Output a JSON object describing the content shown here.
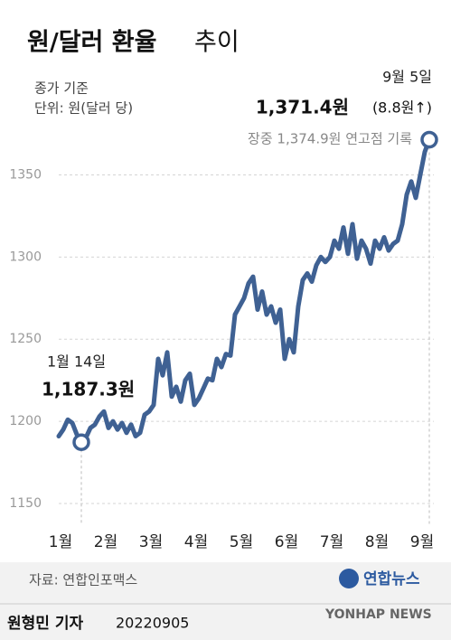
{
  "chart_data": {
    "type": "line",
    "title": "원/달러 환율",
    "title_suffix": "추이",
    "subtitle": [
      "종가 기준",
      "단위: 원(달러 당)"
    ],
    "categories": [
      "1월",
      null,
      null,
      null,
      null,
      null,
      null,
      null,
      null,
      null,
      "2월",
      null,
      null,
      null,
      null,
      null,
      null,
      null,
      null,
      null,
      "3월",
      null,
      null,
      null,
      null,
      null,
      null,
      null,
      null,
      null,
      "4월",
      null,
      null,
      null,
      null,
      null,
      null,
      null,
      null,
      null,
      "5월",
      null,
      null,
      null,
      null,
      null,
      null,
      null,
      null,
      null,
      "6월",
      null,
      null,
      null,
      null,
      null,
      null,
      null,
      null,
      null,
      "7월",
      null,
      null,
      null,
      null,
      null,
      null,
      null,
      null,
      null,
      "8월",
      null,
      null,
      null,
      null,
      null,
      null,
      null,
      null,
      null,
      "9월",
      null,
      null
    ],
    "series": [
      {
        "name": "원/달러 환율",
        "color": "#3f6193",
        "values": [
          1191,
          1195,
          1201,
          1199,
          1192,
          1187.3,
          1190,
          1196,
          1198,
          1203,
          1206,
          1196,
          1200,
          1195,
          1199,
          1193,
          1198,
          1191,
          1193,
          1204,
          1206,
          1210,
          1238,
          1228,
          1242,
          1215,
          1221,
          1212,
          1225,
          1229,
          1210,
          1214,
          1220,
          1226,
          1225,
          1238,
          1233,
          1241,
          1240,
          1265,
          1270,
          1275,
          1284,
          1288,
          1268,
          1279,
          1265,
          1270,
          1260,
          1268,
          1238,
          1250,
          1242,
          1270,
          1286,
          1290,
          1285,
          1295,
          1300,
          1297,
          1300,
          1310,
          1305,
          1318,
          1302,
          1320,
          1299,
          1310,
          1305,
          1296,
          1310,
          1305,
          1312,
          1304,
          1308,
          1310,
          1320,
          1338,
          1346,
          1336,
          1350,
          1364,
          1371.4
        ]
      }
    ],
    "ylim": [
      1150,
      1375
    ],
    "yticks": [
      1150,
      1200,
      1250,
      1300,
      1350
    ],
    "grid": true,
    "annotations": {
      "start": {
        "date": "1월 14일",
        "value": "1,187.3원"
      },
      "end": {
        "date": "9월 5일",
        "value": "1,371.4원",
        "change": "(8.8원↑)",
        "note": "장중 1,374.9원 연고점 기록"
      }
    },
    "source": "자료: 연합인포맥스",
    "credit": {
      "reporter": "원형민 기자",
      "date": "20220905"
    },
    "logo": {
      "name": "연합뉴스",
      "english": "YONHAP NEWS"
    }
  }
}
